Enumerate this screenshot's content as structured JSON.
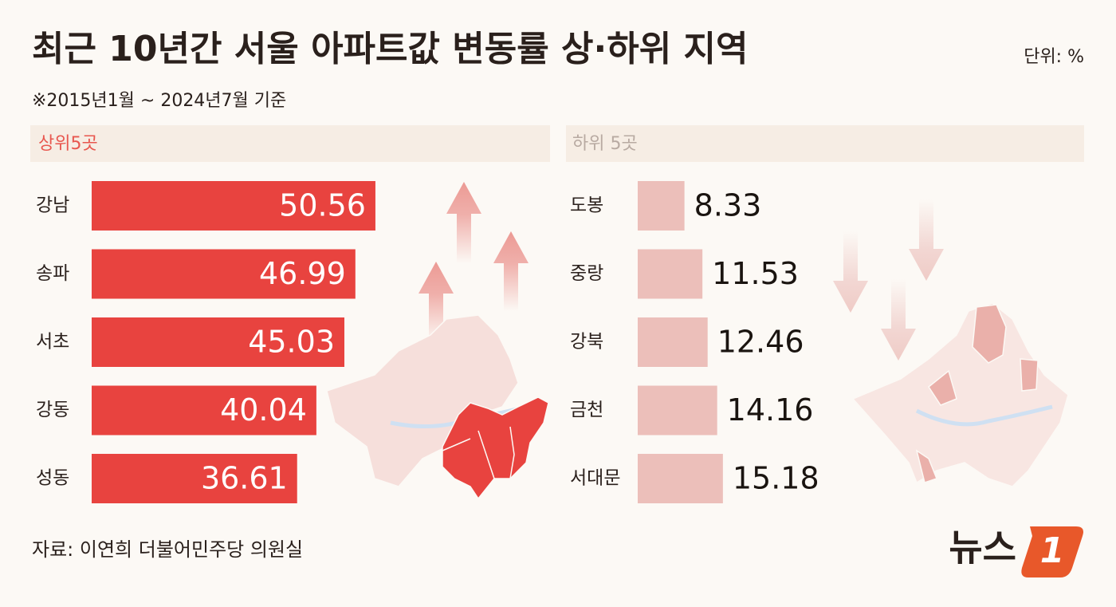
{
  "title": "최근 10년간 서울 아파트값 변동률 상·하위 지역",
  "unit": "단위: %",
  "subtitle": "※2015년1월 ~ 2024년7월 기준",
  "source": "자료: 이연희 더불어민주당 의원실",
  "brand": "뉴스",
  "brand_mark": "1",
  "chart_data": [
    {
      "type": "bar",
      "title": "상위5곳",
      "categories": [
        "강남",
        "송파",
        "서초",
        "강동",
        "성동"
      ],
      "values": [
        50.56,
        46.99,
        45.03,
        40.04,
        36.61
      ],
      "color": "#e8433f"
    },
    {
      "type": "bar",
      "title": "하위 5곳",
      "categories": [
        "도봉",
        "중랑",
        "강북",
        "금천",
        "서대문"
      ],
      "values": [
        8.33,
        11.53,
        12.46,
        14.16,
        15.18
      ],
      "color": "#ecbfba"
    }
  ]
}
